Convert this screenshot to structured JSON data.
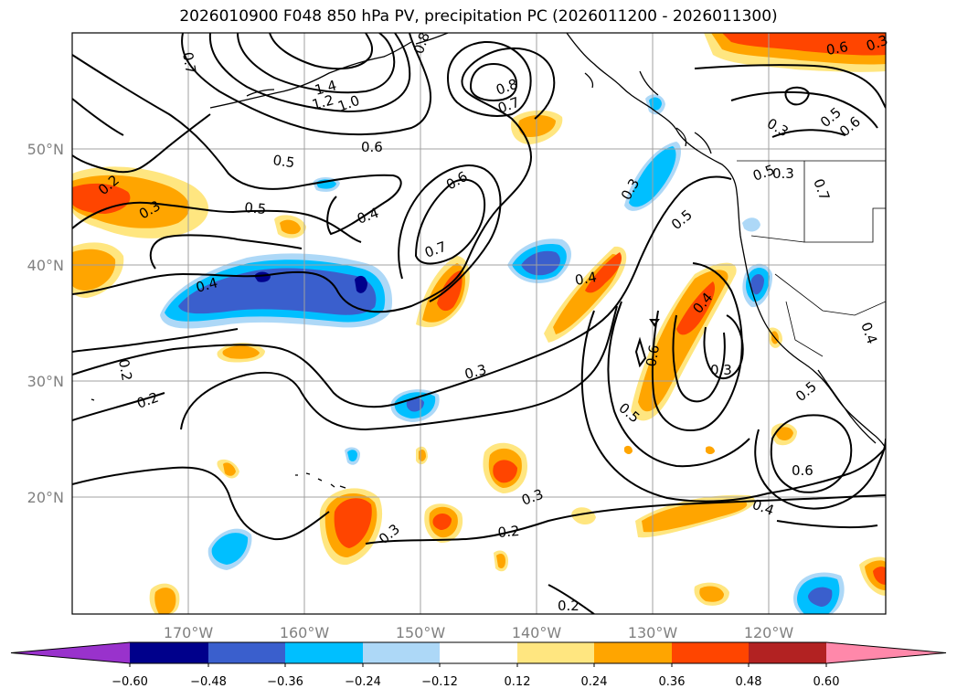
{
  "title": "2026010900 F048 850 hPa PV, precipitation PC (2026011200 - 2026011300)",
  "map": {
    "lon_labels": [
      "170°W",
      "160°W",
      "150°W",
      "140°W",
      "130°W",
      "120°W"
    ],
    "lat_labels": [
      "50°N",
      "40°N",
      "30°N",
      "20°N"
    ],
    "contour_labels": [
      "0.7",
      "0.8",
      "1.4",
      "1.2",
      "1.0",
      "0.8",
      "0.7",
      "0.6",
      "0.5",
      "0.5",
      "0.4",
      "0.6",
      "0.7",
      "0.2",
      "0.3",
      "0.4",
      "0.4",
      "0.3",
      "0.3",
      "0.5",
      "0.4",
      "0.6",
      "0.3",
      "0.5",
      "0.3",
      "0.6",
      "0.5",
      "0.2",
      "0.2",
      "0.3",
      "0.2",
      "0.3",
      "0.4",
      "0.6",
      "0.5",
      "0.5",
      "0.6",
      "0.3",
      "0.7",
      "0.4",
      "0.2",
      "0.3"
    ]
  },
  "colorbar": {
    "ticks": [
      "−0.60",
      "−0.48",
      "−0.36",
      "−0.24",
      "−0.12",
      "0.12",
      "0.24",
      "0.36",
      "0.48",
      "0.60"
    ],
    "colors": [
      "#9932CC",
      "#00008B",
      "#3A5FCD",
      "#00BFFF",
      "#ADD8F7",
      "#FFFFFF",
      "#FFE680",
      "#FFA500",
      "#FF4500",
      "#B22222",
      "#FF88AA"
    ]
  },
  "palette": {
    "shade_neg_light": "#ADD8F7",
    "shade_neg_mid": "#00BFFF",
    "shade_neg_strong": "#3A5FCD",
    "shade_neg_extreme": "#00008B",
    "shade_pos_light": "#FFE680",
    "shade_pos_mid": "#FFA500",
    "shade_pos_strong": "#FF4500"
  }
}
